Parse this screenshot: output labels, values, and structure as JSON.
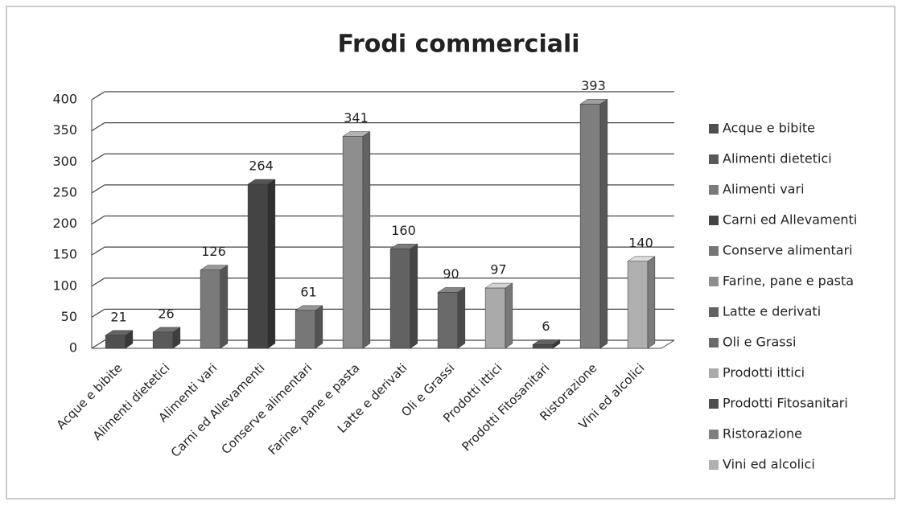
{
  "chart_data": {
    "type": "bar3d",
    "title": "Frodi commerciali",
    "categories": [
      "Acque e bibite",
      "Alimenti dietetici",
      "Alimenti vari",
      "Carni ed Allevamenti",
      "Conserve alimentari",
      "Farine, pane e pasta",
      "Latte e derivati",
      "Oli e Grassi",
      "Prodotti ittici",
      "Prodotti Fitosanitari",
      "Ristorazione",
      "Vini ed alcolici"
    ],
    "values": [
      21,
      26,
      126,
      264,
      61,
      341,
      160,
      90,
      97,
      6,
      393,
      140
    ],
    "colors": [
      "#505050",
      "#5a5a5a",
      "#7a7a7a",
      "#444444",
      "#777777",
      "#8e8e8e",
      "#626262",
      "#6a6a6a",
      "#aaaaaa",
      "#4e4e4e",
      "#7e7e7e",
      "#b0b0b0"
    ],
    "ylim": [
      0,
      400
    ],
    "yticks": [
      0,
      50,
      100,
      150,
      200,
      250,
      300,
      350,
      400
    ],
    "grid": true,
    "legend": "right"
  }
}
